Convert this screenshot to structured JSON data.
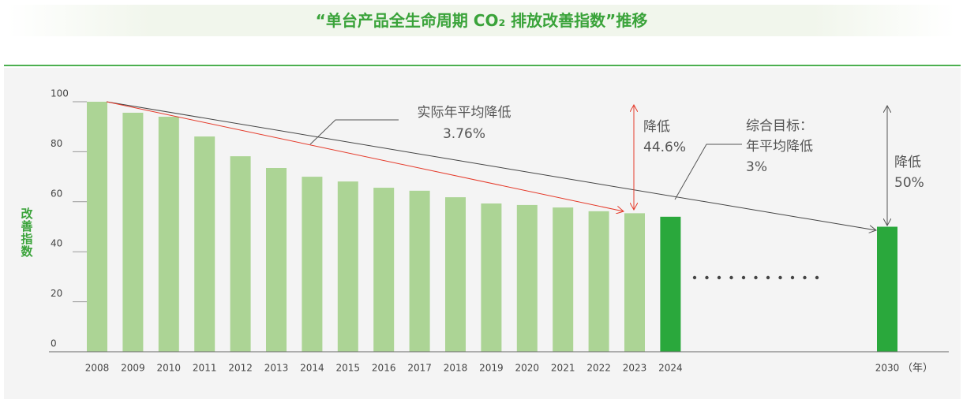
{
  "chart_data": {
    "type": "bar",
    "title": "“单台产品全生命周期 CO₂ 排放改善指数”推移",
    "y_label": "改善指数",
    "x_unit": "（年）",
    "categories": [
      "2008",
      "2009",
      "2010",
      "2011",
      "2012",
      "2013",
      "2014",
      "2015",
      "2016",
      "2017",
      "2018",
      "2019",
      "2020",
      "2021",
      "2022",
      "2023",
      "2024",
      "2030"
    ],
    "values": [
      100,
      95.6,
      94,
      86.1,
      78.2,
      73.5,
      70,
      68.1,
      65.6,
      64.4,
      61.8,
      59.3,
      58.7,
      57.7,
      56.2,
      55.4,
      54,
      50
    ],
    "colors": [
      "#acd495",
      "#acd495",
      "#acd495",
      "#acd495",
      "#acd495",
      "#acd495",
      "#acd495",
      "#acd495",
      "#acd495",
      "#acd495",
      "#acd495",
      "#acd495",
      "#acd495",
      "#acd495",
      "#acd495",
      "#acd495",
      "#2aa83c",
      "#2aa83c"
    ],
    "ylim": [
      0,
      100
    ],
    "yticks": [
      0,
      20,
      40,
      60,
      80,
      100
    ],
    "annotations": {
      "actual_label": "实际年平均降低",
      "actual_value": "3.76%",
      "reduction_label": "降低",
      "reduction_value": "44.6%",
      "target_label": "综合目标：",
      "target_sub": "年平均降低",
      "target_value": "3%",
      "target_reduction_label": "降低",
      "target_reduction_value": "50%"
    }
  }
}
